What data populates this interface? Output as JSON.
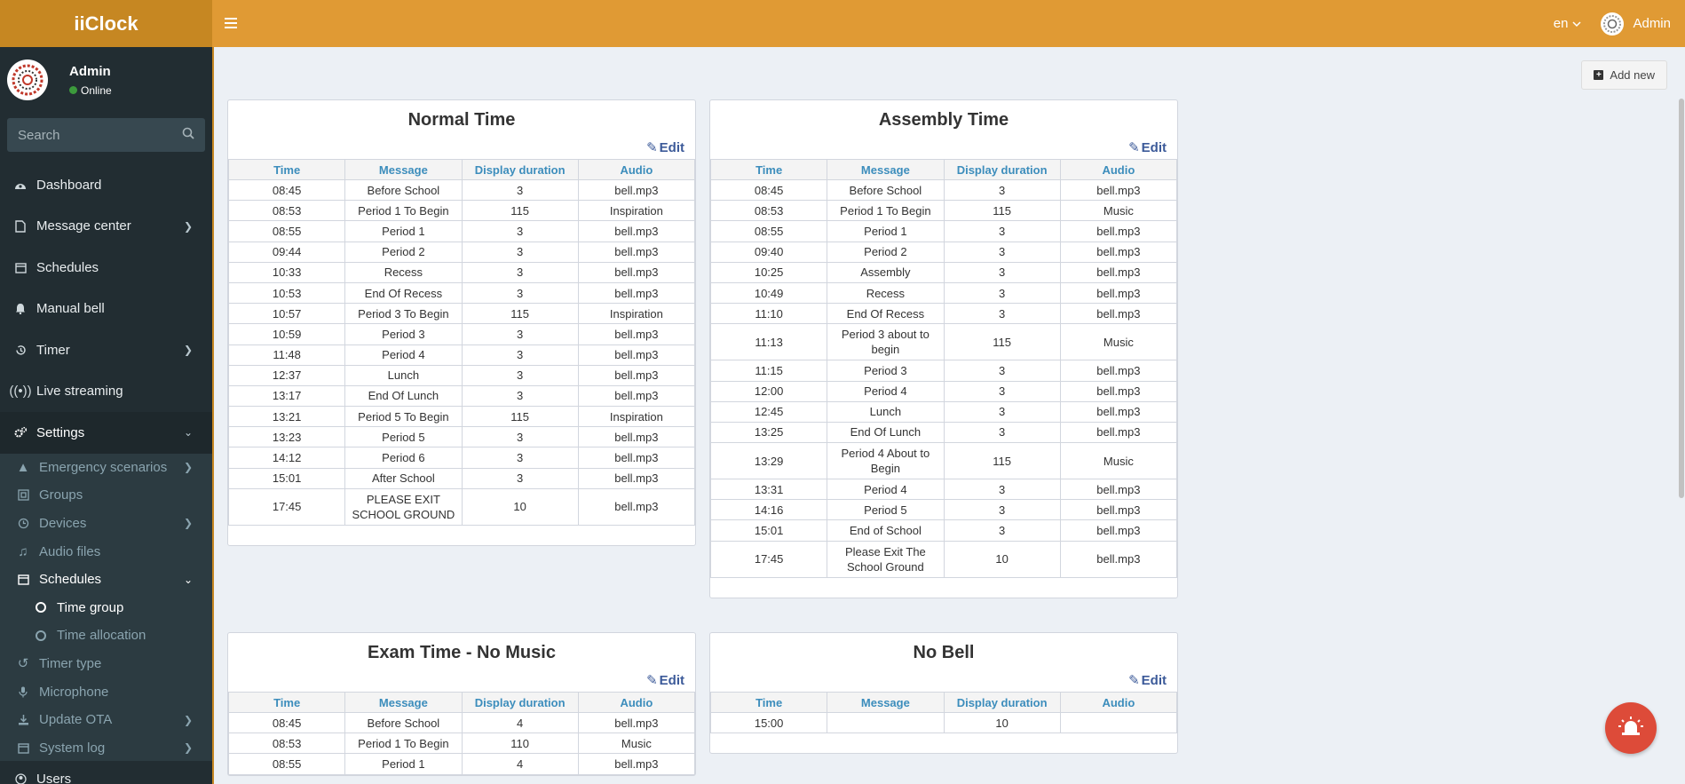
{
  "app": {
    "title": "iiClock"
  },
  "user": {
    "name": "Admin",
    "status": "Online"
  },
  "search": {
    "placeholder": "Search"
  },
  "menu": {
    "dashboard": "Dashboard",
    "message_center": "Message center",
    "schedules": "Schedules",
    "manual_bell": "Manual bell",
    "timer": "Timer",
    "live_streaming": "Live streaming",
    "settings": "Settings",
    "emergency": "Emergency scenarios",
    "groups": "Groups",
    "devices": "Devices",
    "audio_files": "Audio files",
    "schedules_sub": "Schedules",
    "time_group": "Time group",
    "time_allocation": "Time allocation",
    "timer_type": "Timer type",
    "microphone": "Microphone",
    "update_ota": "Update OTA",
    "system_log": "System log",
    "users": "Users"
  },
  "header": {
    "lang": "en",
    "user": "Admin"
  },
  "toolbar": {
    "add_new": "Add new"
  },
  "columns": {
    "time": "Time",
    "message": "Message",
    "duration": "Display duration",
    "audio": "Audio"
  },
  "edit_label": "Edit",
  "cards": {
    "normal": {
      "title": "Normal Time",
      "rows": [
        [
          "08:45",
          "Before School",
          "3",
          "bell.mp3"
        ],
        [
          "08:53",
          "Period 1 To Begin",
          "115",
          "Inspiration"
        ],
        [
          "08:55",
          "Period 1",
          "3",
          "bell.mp3"
        ],
        [
          "09:44",
          "Period 2",
          "3",
          "bell.mp3"
        ],
        [
          "10:33",
          "Recess",
          "3",
          "bell.mp3"
        ],
        [
          "10:53",
          "End Of Recess",
          "3",
          "bell.mp3"
        ],
        [
          "10:57",
          "Period 3 To Begin",
          "115",
          "Inspiration"
        ],
        [
          "10:59",
          "Period 3",
          "3",
          "bell.mp3"
        ],
        [
          "11:48",
          "Period 4",
          "3",
          "bell.mp3"
        ],
        [
          "12:37",
          "Lunch",
          "3",
          "bell.mp3"
        ],
        [
          "13:17",
          "End Of Lunch",
          "3",
          "bell.mp3"
        ],
        [
          "13:21",
          "Period 5 To Begin",
          "115",
          "Inspiration"
        ],
        [
          "13:23",
          "Period 5",
          "3",
          "bell.mp3"
        ],
        [
          "14:12",
          "Period 6",
          "3",
          "bell.mp3"
        ],
        [
          "15:01",
          "After School",
          "3",
          "bell.mp3"
        ],
        [
          "17:45",
          "PLEASE EXIT SCHOOL GROUND",
          "10",
          "bell.mp3"
        ]
      ]
    },
    "assembly": {
      "title": "Assembly Time",
      "rows": [
        [
          "08:45",
          "Before School",
          "3",
          "bell.mp3"
        ],
        [
          "08:53",
          "Period 1 To Begin",
          "115",
          "Music"
        ],
        [
          "08:55",
          "Period 1",
          "3",
          "bell.mp3"
        ],
        [
          "09:40",
          "Period 2",
          "3",
          "bell.mp3"
        ],
        [
          "10:25",
          "Assembly",
          "3",
          "bell.mp3"
        ],
        [
          "10:49",
          "Recess",
          "3",
          "bell.mp3"
        ],
        [
          "11:10",
          "End Of Recess",
          "3",
          "bell.mp3"
        ],
        [
          "11:13",
          "Period 3 about to begin",
          "115",
          "Music"
        ],
        [
          "11:15",
          "Period 3",
          "3",
          "bell.mp3"
        ],
        [
          "12:00",
          "Period 4",
          "3",
          "bell.mp3"
        ],
        [
          "12:45",
          "Lunch",
          "3",
          "bell.mp3"
        ],
        [
          "13:25",
          "End Of Lunch",
          "3",
          "bell.mp3"
        ],
        [
          "13:29",
          "Period 4 About to Begin",
          "115",
          "Music"
        ],
        [
          "13:31",
          "Period 4",
          "3",
          "bell.mp3"
        ],
        [
          "14:16",
          "Period 5",
          "3",
          "bell.mp3"
        ],
        [
          "15:01",
          "End of School",
          "3",
          "bell.mp3"
        ],
        [
          "17:45",
          "Please Exit The School Ground",
          "10",
          "bell.mp3"
        ]
      ]
    },
    "exam": {
      "title": "Exam Time - No Music",
      "rows": [
        [
          "08:45",
          "Before School",
          "4",
          "bell.mp3"
        ],
        [
          "08:53",
          "Period 1 To Begin",
          "110",
          "Music"
        ],
        [
          "08:55",
          "Period 1",
          "4",
          "bell.mp3"
        ]
      ]
    },
    "nobell": {
      "title": "No Bell",
      "rows": [
        [
          "15:00",
          "",
          "10",
          ""
        ]
      ]
    }
  }
}
